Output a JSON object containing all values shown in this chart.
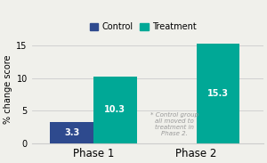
{
  "phases": [
    "Phase 1",
    "Phase 2"
  ],
  "control_values": [
    3.3,
    null
  ],
  "treatment_values": [
    10.3,
    15.3
  ],
  "control_color": "#2e4a8e",
  "treatment_color": "#00a896",
  "bar_width": 0.42,
  "ylim": [
    0,
    16.5
  ],
  "yticks": [
    0,
    5,
    10,
    15
  ],
  "ylabel": "% change score",
  "legend_labels": [
    "Control",
    "Treatment"
  ],
  "annotation_text": "* Control group\nall moved to\ntreatment in\nPhase 2.",
  "annotation_fontsize": 5.0,
  "bar_label_fontsize": 7.0,
  "background_color": "#f0f0eb",
  "grid_color": "#cccccc",
  "phase_fontsize": 8.5,
  "ylabel_fontsize": 7.0,
  "ytick_fontsize": 7.0,
  "legend_fontsize": 7.0
}
